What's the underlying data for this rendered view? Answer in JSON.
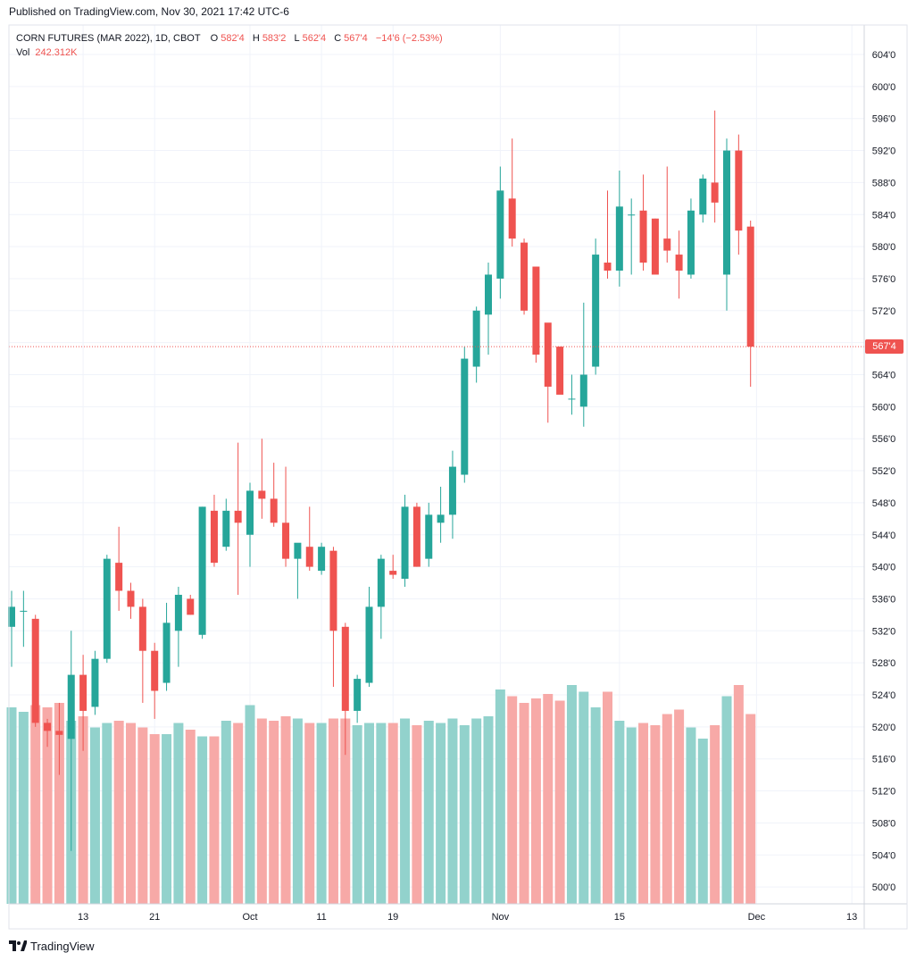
{
  "header": {
    "published": "Published on TradingView.com, Nov 30, 2021 17:42 UTC-6"
  },
  "legend": {
    "title": "CORN FUTURES (MAR 2022), 1D, CBOT",
    "open_label": "O",
    "open": "582'4",
    "high_label": "H",
    "high": "583'2",
    "low_label": "L",
    "low": "562'4",
    "close_label": "C",
    "close": "567'4",
    "change": "−14'6 (−2.53%)",
    "vol_label": "Vol",
    "vol": "242.312K"
  },
  "footer": {
    "brand": "TradingView"
  },
  "colors": {
    "up": "#26a69a",
    "down": "#ef5350",
    "up_vol": "#92d2cc",
    "down_vol": "#f7a9a7",
    "grid": "#f0f3fa",
    "axis_text": "#131722"
  },
  "chart_data": {
    "type": "candlestick",
    "price_scale_ticks": [
      "500'0",
      "504'0",
      "508'0",
      "512'0",
      "516'0",
      "520'0",
      "524'0",
      "528'0",
      "532'0",
      "536'0",
      "540'0",
      "544'0",
      "548'0",
      "552'0",
      "556'0",
      "560'0",
      "564'0",
      "568'0",
      "572'0",
      "576'0",
      "580'0",
      "584'0",
      "588'0",
      "592'0",
      "596'0",
      "600'0",
      "604'0"
    ],
    "price_scale_values": [
      500,
      504,
      508,
      512,
      516,
      520,
      524,
      528,
      532,
      536,
      540,
      544,
      548,
      552,
      556,
      560,
      564,
      568,
      572,
      576,
      580,
      584,
      588,
      592,
      596,
      600,
      604
    ],
    "ylim": [
      497.5,
      606
    ],
    "x_ticks": [
      {
        "label": "13",
        "index": 6
      },
      {
        "label": "21",
        "index": 12
      },
      {
        "label": "Oct",
        "index": 20
      },
      {
        "label": "11",
        "index": 26
      },
      {
        "label": "19",
        "index": 32
      },
      {
        "label": "Nov",
        "index": 41
      },
      {
        "label": "15",
        "index": 51
      },
      {
        "label": "Dec",
        "index": 62.5
      },
      {
        "label": "13",
        "index": 70.5
      }
    ],
    "last_price": 567.5,
    "last_price_label": "567'4",
    "candles": [
      {
        "o": 532.5,
        "h": 537.0,
        "l": 527.5,
        "c": 535.0
      },
      {
        "o": 534.5,
        "h": 537.0,
        "l": 530.0,
        "c": 534.5
      },
      {
        "o": 533.5,
        "h": 534.0,
        "l": 520.0,
        "c": 520.5
      },
      {
        "o": 520.5,
        "h": 521.0,
        "l": 517.5,
        "c": 519.5
      },
      {
        "o": 519.5,
        "h": 523.0,
        "l": 514.0,
        "c": 519.0
      },
      {
        "o": 518.5,
        "h": 532.0,
        "l": 504.5,
        "c": 526.5
      },
      {
        "o": 526.5,
        "h": 529.0,
        "l": 517.0,
        "c": 522.0
      },
      {
        "o": 522.5,
        "h": 529.5,
        "l": 521.5,
        "c": 528.5
      },
      {
        "o": 528.5,
        "h": 541.5,
        "l": 528.0,
        "c": 541.0
      },
      {
        "o": 540.5,
        "h": 545.0,
        "l": 534.5,
        "c": 537.0
      },
      {
        "o": 537.0,
        "h": 538.0,
        "l": 533.5,
        "c": 535.0
      },
      {
        "o": 535.0,
        "h": 536.0,
        "l": 523.0,
        "c": 529.5
      },
      {
        "o": 529.5,
        "h": 530.5,
        "l": 521.0,
        "c": 524.5
      },
      {
        "o": 525.5,
        "h": 535.5,
        "l": 524.5,
        "c": 533.0
      },
      {
        "o": 532.0,
        "h": 537.5,
        "l": 527.5,
        "c": 536.5
      },
      {
        "o": 536.0,
        "h": 536.5,
        "l": 534.0,
        "c": 534.0
      },
      {
        "o": 531.5,
        "h": 547.5,
        "l": 531.0,
        "c": 547.5
      },
      {
        "o": 547.0,
        "h": 549.0,
        "l": 540.0,
        "c": 540.5
      },
      {
        "o": 542.5,
        "h": 548.5,
        "l": 542.0,
        "c": 547.0
      },
      {
        "o": 547.0,
        "h": 555.5,
        "l": 536.5,
        "c": 545.5
      },
      {
        "o": 544.0,
        "h": 550.5,
        "l": 540.0,
        "c": 549.5
      },
      {
        "o": 549.5,
        "h": 556.0,
        "l": 546.0,
        "c": 548.5
      },
      {
        "o": 548.5,
        "h": 553.0,
        "l": 545.0,
        "c": 545.5
      },
      {
        "o": 545.5,
        "h": 552.5,
        "l": 540.0,
        "c": 541.0
      },
      {
        "o": 541.0,
        "h": 542.5,
        "l": 536.0,
        "c": 543.0
      },
      {
        "o": 542.5,
        "h": 547.5,
        "l": 539.5,
        "c": 540.0
      },
      {
        "o": 539.5,
        "h": 543.0,
        "l": 539.0,
        "c": 542.5
      },
      {
        "o": 542.0,
        "h": 542.5,
        "l": 525.0,
        "c": 532.0
      },
      {
        "o": 532.5,
        "h": 533.0,
        "l": 516.5,
        "c": 522.0
      },
      {
        "o": 522.0,
        "h": 526.5,
        "l": 520.5,
        "c": 526.0
      },
      {
        "o": 525.5,
        "h": 537.5,
        "l": 525.0,
        "c": 535.0
      },
      {
        "o": 535.0,
        "h": 541.5,
        "l": 531.0,
        "c": 541.0
      },
      {
        "o": 539.5,
        "h": 541.5,
        "l": 538.5,
        "c": 539.0
      },
      {
        "o": 538.5,
        "h": 549.0,
        "l": 537.5,
        "c": 547.5
      },
      {
        "o": 547.5,
        "h": 548.0,
        "l": 540.0,
        "c": 540.0
      },
      {
        "o": 541.0,
        "h": 548.0,
        "l": 540.0,
        "c": 546.5
      },
      {
        "o": 545.5,
        "h": 550.0,
        "l": 543.0,
        "c": 546.5
      },
      {
        "o": 546.5,
        "h": 554.5,
        "l": 543.5,
        "c": 552.5
      },
      {
        "o": 551.5,
        "h": 567.5,
        "l": 550.5,
        "c": 566.0
      },
      {
        "o": 565.0,
        "h": 572.5,
        "l": 563.0,
        "c": 572.0
      },
      {
        "o": 571.5,
        "h": 578.0,
        "l": 566.5,
        "c": 576.5
      },
      {
        "o": 576.0,
        "h": 590.0,
        "l": 573.5,
        "c": 587.0
      },
      {
        "o": 586.0,
        "h": 593.5,
        "l": 580.0,
        "c": 581.0
      },
      {
        "o": 580.5,
        "h": 581.0,
        "l": 571.5,
        "c": 572.0
      },
      {
        "o": 577.5,
        "h": 577.5,
        "l": 565.5,
        "c": 566.5
      },
      {
        "o": 570.5,
        "h": 570.0,
        "l": 558.0,
        "c": 562.5
      },
      {
        "o": 567.5,
        "h": 567.5,
        "l": 562.5,
        "c": 561.5
      },
      {
        "o": 561.0,
        "h": 564.0,
        "l": 559.0,
        "c": 561.0
      },
      {
        "o": 560.0,
        "h": 573.0,
        "l": 557.5,
        "c": 564.0
      },
      {
        "o": 565.0,
        "h": 581.0,
        "l": 564.0,
        "c": 579.0
      },
      {
        "o": 578.0,
        "h": 587.0,
        "l": 576.0,
        "c": 577.0
      },
      {
        "o": 577.0,
        "h": 589.5,
        "l": 575.0,
        "c": 585.0
      },
      {
        "o": 584.0,
        "h": 586.0,
        "l": 576.5,
        "c": 584.0
      },
      {
        "o": 584.5,
        "h": 589.0,
        "l": 577.0,
        "c": 578.0
      },
      {
        "o": 583.5,
        "h": 583.5,
        "l": 577.0,
        "c": 576.5
      },
      {
        "o": 581.0,
        "h": 590.0,
        "l": 578.0,
        "c": 579.5
      },
      {
        "o": 579.0,
        "h": 582.0,
        "l": 573.5,
        "c": 577.0
      },
      {
        "o": 576.5,
        "h": 586.0,
        "l": 576.0,
        "c": 584.5
      },
      {
        "o": 584.0,
        "h": 589.0,
        "l": 583.0,
        "c": 588.5
      },
      {
        "o": 588.0,
        "h": 597.0,
        "l": 583.0,
        "c": 585.5
      },
      {
        "o": 576.5,
        "h": 593.5,
        "l": 572.0,
        "c": 592.0
      },
      {
        "o": 592.0,
        "h": 594.0,
        "l": 579.0,
        "c": 582.0
      },
      {
        "o": 582.5,
        "h": 583.25,
        "l": 562.5,
        "c": 567.5
      }
    ],
    "volume": [
      88,
      86,
      89,
      88,
      90,
      82,
      84,
      79,
      81,
      82,
      81,
      79,
      76,
      76,
      81,
      78,
      75,
      75,
      82,
      81,
      89,
      83,
      82,
      84,
      83,
      81,
      81,
      83,
      83,
      80,
      81,
      81,
      81,
      83,
      80,
      82,
      81,
      83,
      80,
      83,
      84,
      96,
      93,
      90,
      92,
      94,
      91,
      98,
      95,
      88,
      95,
      82,
      79,
      81,
      80,
      85,
      87,
      79,
      74,
      80,
      93,
      98,
      85
    ]
  }
}
